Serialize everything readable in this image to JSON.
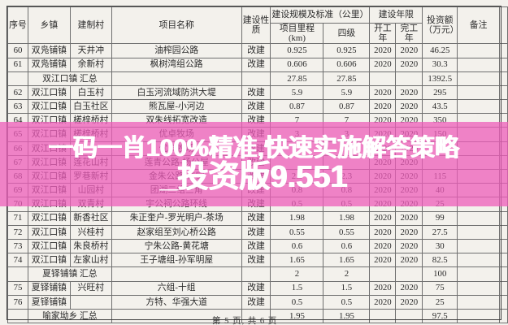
{
  "document": {
    "footer": "第 5 页, 共 6 页"
  },
  "watermark": {
    "line1": "一码一肖100%精准,快速实施解答策略",
    "line2": "_投资版9.551",
    "band_color": "rgba(238,92,186,0.75)",
    "text_color": "#ffffff"
  },
  "table": {
    "headers": {
      "no": "序号",
      "town": "乡镇",
      "village": "建制村",
      "project": "项目名称",
      "nature": "建设性质",
      "scale_group": "建设规模及标准（公里）",
      "mileage": "项目里程 (km)",
      "grade4": "四级",
      "years_group": "建设年限",
      "start_year": "开工年",
      "end_year": "完工年",
      "investment": "投资额 （万元）",
      "remark": "备注"
    },
    "rows": [
      {
        "type": "data",
        "no": "60",
        "town": "双凫铺镇",
        "village": "天井冲",
        "project": "油榨园公路",
        "nature": "改建",
        "mileage": "0.925",
        "grade4": "0.925",
        "start": "2020",
        "end": "2020",
        "investment": "46.25",
        "remark": ""
      },
      {
        "type": "data",
        "no": "61",
        "town": "双凫铺镇",
        "village": "余新村",
        "project": "枫树湾组公路",
        "nature": "改建",
        "mileage": "0.606",
        "grade4": "0.606",
        "start": "2020",
        "end": "2020",
        "investment": "30.3",
        "remark": ""
      },
      {
        "type": "summary",
        "no": "",
        "label": "双江口镇 汇总",
        "mileage": "27.85",
        "grade4": "27.85",
        "investment": "1392.5"
      },
      {
        "type": "data",
        "no": "62",
        "town": "双江口镇",
        "village": "白玉村",
        "project": "白玉河流域防洪大堤",
        "nature": "改建",
        "mileage": "5.9",
        "grade4": "5.9",
        "start": "2020",
        "end": "2020",
        "investment": "295",
        "remark": ""
      },
      {
        "type": "data",
        "no": "63",
        "town": "双江口镇",
        "village": "白玉社区",
        "project": "熊瓦屋-小河边",
        "nature": "改建",
        "mileage": "0.87",
        "grade4": "0.87",
        "start": "2020",
        "end": "2020",
        "investment": "43.5",
        "remark": ""
      },
      {
        "type": "data",
        "no": "64",
        "town": "双江口镇",
        "village": "槎梓桥村",
        "project": "双朱线拓宽改造",
        "nature": "改建",
        "mileage": "7",
        "grade4": "7",
        "start": "2020",
        "end": "2020",
        "investment": "350",
        "remark": ""
      },
      {
        "type": "data",
        "no": "65",
        "town": "双江口镇",
        "village": "槎梓桥村",
        "project": "优卓牧场",
        "nature": "改建",
        "mileage": "3",
        "grade4": "3",
        "start": "2020",
        "end": "2020",
        "investment": "150",
        "remark": ""
      },
      {
        "type": "data",
        "no": "66",
        "town": "双江口镇",
        "village": "",
        "project": "优卓牧场",
        "nature": "改建",
        "mileage": "",
        "grade4": "",
        "start": "2020",
        "end": "2020",
        "investment": "",
        "remark": ""
      },
      {
        "type": "data",
        "no": "67",
        "town": "双江口镇",
        "village": "莲花山村",
        "project": "莲青公路-杨公屋",
        "nature": "改建",
        "mileage": "",
        "grade4": "",
        "start": "2020",
        "end": "2020",
        "investment": "",
        "remark": ""
      },
      {
        "type": "data",
        "no": "68",
        "town": "双江口镇",
        "village": "罗巷新村",
        "project": "金朱公路-许家",
        "nature": "改建",
        "mileage": "2.3",
        "grade4": "2.3",
        "start": "2020",
        "end": "2020",
        "investment": "115",
        "remark": ""
      },
      {
        "type": "data",
        "no": "69",
        "town": "双江口镇",
        "village": "山园村",
        "project": "团湖二组三角",
        "nature": "改建",
        "mileage": "0.8",
        "grade4": "0.8",
        "start": "2020",
        "end": "2020",
        "investment": "40",
        "remark": ""
      },
      {
        "type": "data",
        "no": "70",
        "town": "双江口镇",
        "village": "双青村",
        "project": "宇公祠公路环线",
        "nature": "改建",
        "mileage": "0.5",
        "grade4": "0.5",
        "start": "2020",
        "end": "2020",
        "investment": "25",
        "remark": ""
      },
      {
        "type": "data",
        "no": "71",
        "town": "双江口镇",
        "village": "新香社区",
        "project": "朱正奎户-罗光明户-茶场",
        "nature": "改建",
        "mileage": "1.98",
        "grade4": "1.98",
        "start": "2020",
        "end": "2020",
        "investment": "99",
        "remark": ""
      },
      {
        "type": "data",
        "no": "72",
        "town": "双江口镇",
        "village": "兴桂村",
        "project": "赵家组至刘心桥公路",
        "nature": "改建",
        "mileage": "0.55",
        "grade4": "0.55",
        "start": "2020",
        "end": "2020",
        "investment": "27.5",
        "remark": ""
      },
      {
        "type": "data",
        "no": "73",
        "town": "双江口镇",
        "village": "朱良桥村",
        "project": "宁朱公路-黄花塘",
        "nature": "改建",
        "mileage": "0.6",
        "grade4": "0.6",
        "start": "2020",
        "end": "2020",
        "investment": "30",
        "remark": ""
      },
      {
        "type": "data",
        "no": "74",
        "town": "双江口镇",
        "village": "左家山村",
        "project": "王子塘组-孙军明屋",
        "nature": "改建",
        "mileage": "1.65",
        "grade4": "1.65",
        "start": "2020",
        "end": "2020",
        "investment": "82.5",
        "remark": ""
      },
      {
        "type": "summary",
        "no": "",
        "label": "夏铎铺镇 汇总",
        "mileage": "2",
        "grade4": "2",
        "investment": "100"
      },
      {
        "type": "data",
        "no": "75",
        "town": "夏铎铺镇",
        "village": "兴旺村",
        "project": "六组-十组",
        "nature": "改建",
        "mileage": "1.5",
        "grade4": "1.5",
        "start": "2020",
        "end": "2020",
        "investment": "75",
        "remark": ""
      },
      {
        "type": "data",
        "no": "76",
        "town": "夏铎铺镇",
        "village": "",
        "project": "方特、华强大道",
        "nature": "改建",
        "mileage": "0.5",
        "grade4": "0.5",
        "start": "2020",
        "end": "2020",
        "investment": "25",
        "remark": ""
      },
      {
        "type": "summary",
        "no": "",
        "label": "喻家坳乡 汇总",
        "mileage": "1.95",
        "grade4": "1.95",
        "investment": "97.5"
      }
    ]
  }
}
